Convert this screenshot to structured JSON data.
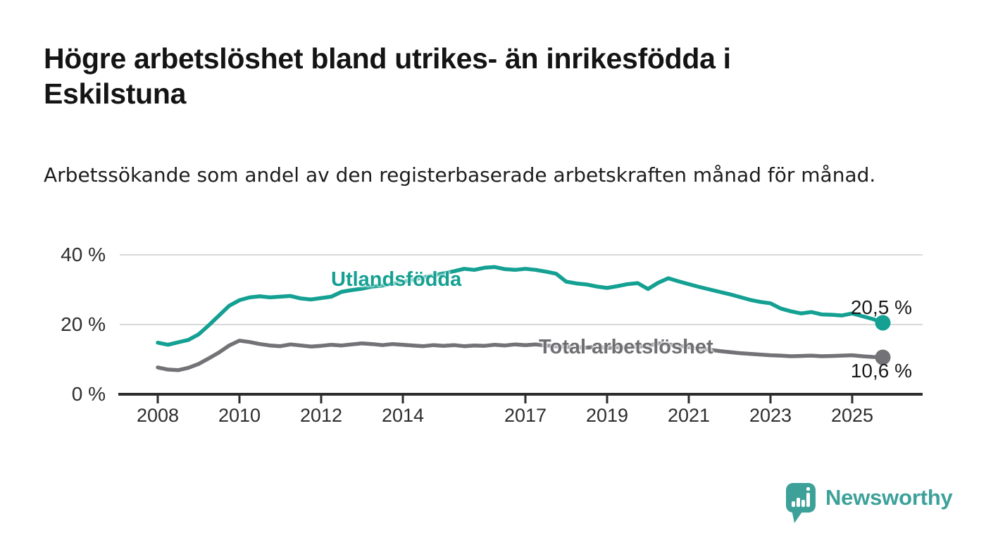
{
  "title": "Högre arbetslöshet bland utrikes- än inrikesfödda i Eskilstuna",
  "subtitle": "Arbetssökande som andel av den registerbaserade arbetskraften månad för månad.",
  "branding": {
    "logo_text": "Newsworthy",
    "brand_color": "#3da19a"
  },
  "colors": {
    "foreign_born_line": "#14a092",
    "total_line": "#737377",
    "axis": "#2d2d2d",
    "grid": "#d9d9d9",
    "text": "#1a1a1a"
  },
  "chart_data": {
    "type": "line",
    "title": "Högre arbetslöshet bland utrikes- än inrikesfödda i Eskilstuna",
    "subtitle": "Arbetssökande som andel av den registerbaserade arbetskraften månad för månad.",
    "unit": "%",
    "x_start": 2008.0,
    "x_step": 0.25,
    "x_end": 2025.75,
    "ylim": [
      0,
      42
    ],
    "grid": "horizontal",
    "legend": "inline-labels",
    "x_ticks": [
      {
        "year": 2008,
        "label": "2008"
      },
      {
        "year": 2010,
        "label": "2010"
      },
      {
        "year": 2012,
        "label": "2012"
      },
      {
        "year": 2014,
        "label": "2014"
      },
      {
        "year": 2017,
        "label": "2017"
      },
      {
        "year": 2019,
        "label": "2019"
      },
      {
        "year": 2021,
        "label": "2021"
      },
      {
        "year": 2023,
        "label": "2023"
      },
      {
        "year": 2025,
        "label": "2025"
      }
    ],
    "y_ticks": [
      {
        "value": 0,
        "label": "0 %"
      },
      {
        "value": 20,
        "label": "20 %"
      },
      {
        "value": 40,
        "label": "40 %"
      }
    ],
    "series": [
      {
        "name": "Utlandsfödda",
        "color": "#14a092",
        "end_label": "20,5 %",
        "end_value": 20.5,
        "values": [
          14.8,
          14.2,
          14.9,
          15.6,
          17.2,
          19.8,
          22.6,
          25.4,
          27.0,
          27.8,
          28.1,
          27.8,
          28.0,
          28.2,
          27.5,
          27.2,
          27.6,
          28.0,
          29.4,
          29.9,
          30.3,
          30.9,
          31.2,
          31.7,
          32.2,
          32.9,
          33.5,
          34.1,
          34.7,
          35.3,
          36.0,
          35.7,
          36.3,
          36.5,
          35.9,
          35.7,
          36.0,
          35.7,
          35.2,
          34.6,
          32.3,
          31.8,
          31.5,
          30.9,
          30.5,
          31.0,
          31.6,
          31.9,
          30.2,
          32.0,
          33.3,
          32.4,
          31.6,
          30.8,
          30.1,
          29.4,
          28.7,
          27.9,
          27.1,
          26.5,
          26.1,
          24.6,
          23.8,
          23.2,
          23.6,
          22.9,
          22.8,
          22.6,
          23.2,
          22.4,
          21.6,
          20.5
        ]
      },
      {
        "name": "Total arbetslöshet",
        "color": "#737377",
        "end_label": "10,6 %",
        "end_value": 10.6,
        "values": [
          7.7,
          7.1,
          6.9,
          7.6,
          8.7,
          10.3,
          12.0,
          14.0,
          15.4,
          15.0,
          14.4,
          14.0,
          13.8,
          14.3,
          14.0,
          13.7,
          13.9,
          14.2,
          14.0,
          14.3,
          14.6,
          14.4,
          14.1,
          14.4,
          14.2,
          14.0,
          13.8,
          14.1,
          13.9,
          14.1,
          13.8,
          14.0,
          13.9,
          14.2,
          14.0,
          14.3,
          14.1,
          14.3,
          14.0,
          13.8,
          13.6,
          13.5,
          13.4,
          13.6,
          13.3,
          13.5,
          13.4,
          13.7,
          13.9,
          14.6,
          14.3,
          13.9,
          13.5,
          13.1,
          12.8,
          12.4,
          12.1,
          11.8,
          11.6,
          11.4,
          11.2,
          11.1,
          10.9,
          11.0,
          11.1,
          10.9,
          11.0,
          11.1,
          11.2,
          10.9,
          10.7,
          10.6
        ]
      }
    ]
  }
}
